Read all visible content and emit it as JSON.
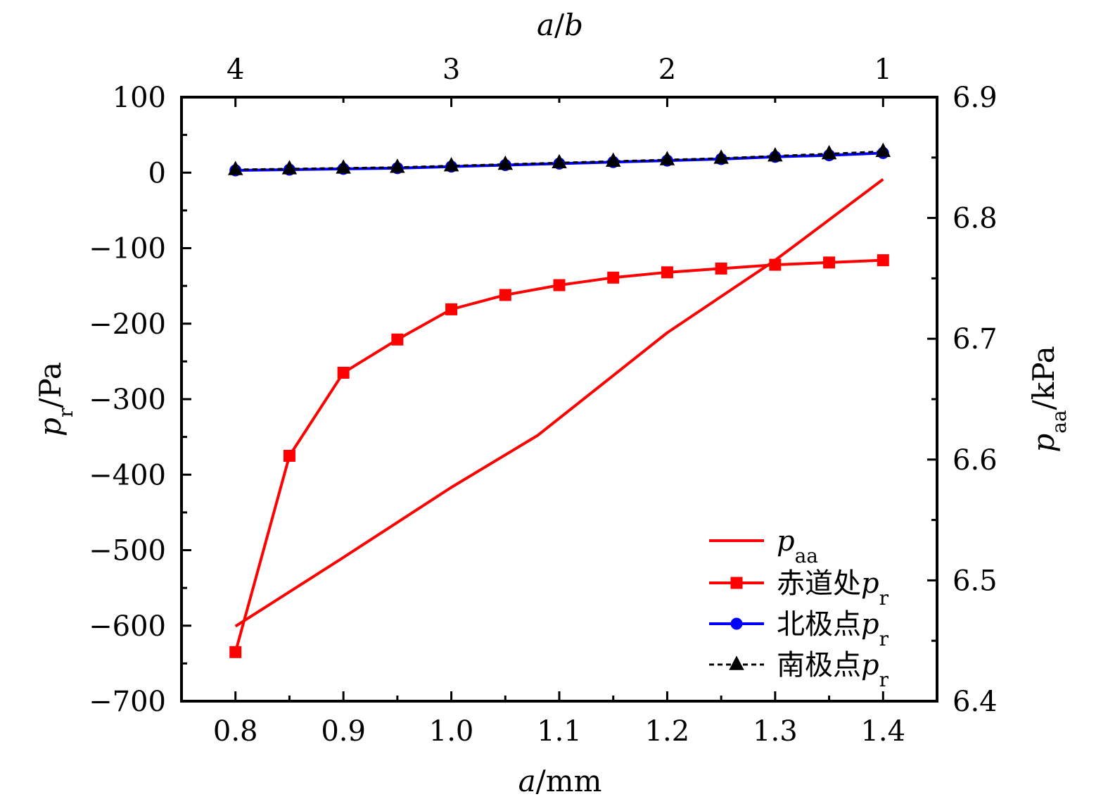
{
  "chart_data": {
    "type": "line",
    "x_axis": {
      "label": "a/mm",
      "range": [
        0.75,
        1.45
      ],
      "ticks": [
        0.8,
        0.9,
        1.0,
        1.1,
        1.2,
        1.3,
        1.4
      ],
      "tick_labels": [
        "0.8",
        "0.9",
        "1.0",
        "1.1",
        "1.2",
        "1.3",
        "1.4"
      ]
    },
    "top_axis": {
      "label": "a/b",
      "ticks_at_x": [
        0.8,
        1.0,
        1.2,
        1.4
      ],
      "tick_labels": [
        "4",
        "3",
        "2",
        "1"
      ]
    },
    "left_axis": {
      "label": "pr/Pa",
      "range": [
        -700,
        100
      ],
      "ticks": [
        100,
        0,
        -100,
        -200,
        -300,
        -400,
        -500,
        -600,
        -700
      ],
      "tick_labels": [
        "100",
        "0",
        "−100",
        "−200",
        "−300",
        "−400",
        "−500",
        "−600",
        "−700"
      ]
    },
    "right_axis": {
      "label": "paa/kPa",
      "range": [
        6.4,
        6.9
      ],
      "ticks": [
        6.9,
        6.8,
        6.7,
        6.6,
        6.5,
        6.4
      ],
      "tick_labels": [
        "6.9",
        "6.8",
        "6.7",
        "6.6",
        "6.5",
        "6.4"
      ]
    },
    "series": [
      {
        "name": "paa",
        "axis": "right",
        "color": "#ff0000",
        "marker": "none",
        "line": "solid",
        "x": [
          0.8,
          0.9,
          1.0,
          1.08,
          1.2,
          1.3,
          1.4
        ],
        "y": [
          6.462,
          6.519,
          6.577,
          6.62,
          6.705,
          6.765,
          6.832
        ]
      },
      {
        "name": "赤道处pr",
        "axis": "left",
        "color": "#ff0000",
        "marker": "square",
        "line": "solid",
        "x": [
          0.8,
          0.85,
          0.9,
          0.95,
          1.0,
          1.05,
          1.1,
          1.15,
          1.2,
          1.25,
          1.3,
          1.35,
          1.4
        ],
        "y": [
          -635,
          -375,
          -265,
          -221,
          -181,
          -162,
          -149,
          -139,
          -132,
          -127,
          -122,
          -119,
          -116
        ]
      },
      {
        "name": "北极点pr",
        "axis": "left",
        "color": "#0000ff",
        "marker": "circle",
        "line": "solid",
        "x": [
          0.8,
          0.85,
          0.9,
          0.95,
          1.0,
          1.05,
          1.1,
          1.15,
          1.2,
          1.25,
          1.3,
          1.35,
          1.4
        ],
        "y": [
          3,
          4,
          5,
          6,
          8,
          10,
          12,
          14,
          16,
          18,
          21,
          23,
          26
        ]
      },
      {
        "name": "南极点pr",
        "axis": "left",
        "color": "#000000",
        "marker": "triangle",
        "line": "dashed",
        "x": [
          0.8,
          0.85,
          0.9,
          0.95,
          1.0,
          1.05,
          1.1,
          1.15,
          1.2,
          1.25,
          1.3,
          1.35,
          1.4
        ],
        "y": [
          4,
          5,
          6,
          7,
          9,
          11,
          13,
          15,
          17,
          19,
          22,
          25,
          28
        ]
      }
    ],
    "legend": {
      "placement": "bottom-right",
      "entries": [
        {
          "italic": "p",
          "sub": "aa",
          "prefix": ""
        },
        {
          "italic": "p",
          "sub": "r",
          "prefix": "赤道处"
        },
        {
          "italic": "p",
          "sub": "r",
          "prefix": "北极点"
        },
        {
          "italic": "p",
          "sub": "r",
          "prefix": "南极点"
        }
      ]
    },
    "grid": false
  }
}
